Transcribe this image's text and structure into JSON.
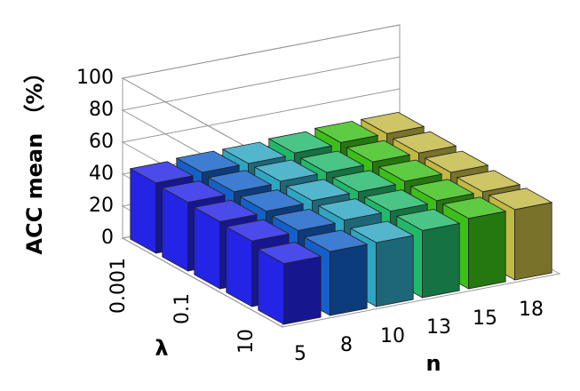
{
  "chart_data": {
    "type": "bar3d",
    "y_axis_title": "ACC mean （%）",
    "x_axis_title": "n",
    "depth_axis_title": "λ",
    "categories": [
      "5",
      "8",
      "10",
      "13",
      "15",
      "18"
    ],
    "depth_categories": [
      "0.001",
      null,
      "0.1",
      null,
      "10"
    ],
    "colors": [
      "#2424e6",
      "#1560c8",
      "#2ea6c2",
      "#22b86a",
      "#3cc018",
      "#c2b844"
    ],
    "values": [
      [
        44,
        45,
        45,
        46,
        47,
        47
      ],
      [
        43,
        44,
        45,
        45,
        46,
        46
      ],
      [
        42,
        43,
        44,
        44,
        45,
        45
      ],
      [
        41,
        42,
        43,
        43,
        44,
        44
      ],
      [
        38,
        40,
        40,
        42,
        44,
        44
      ]
    ],
    "ylim": [
      0,
      100
    ],
    "yticks": [
      0,
      20,
      40,
      60,
      80,
      100
    ],
    "grid": true
  }
}
